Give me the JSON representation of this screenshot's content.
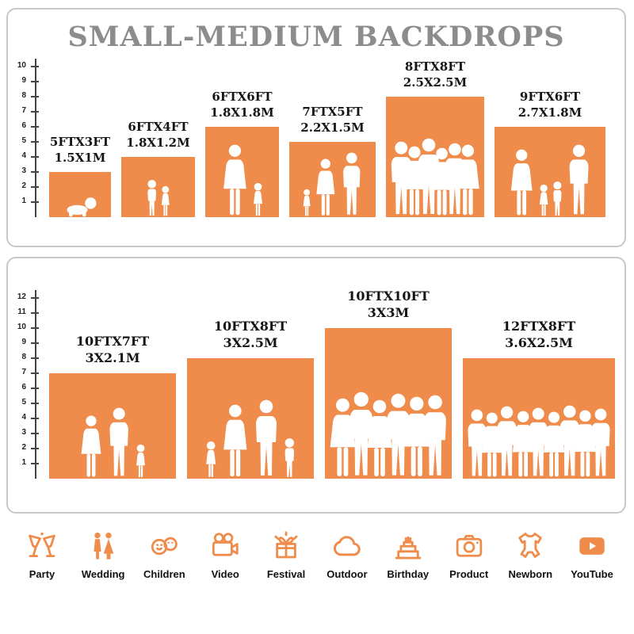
{
  "title": "SMALL-MEDIUM BACKDROPS",
  "colors": {
    "accent": "#EF8C4B",
    "title_text": "#8C8C8C",
    "label_text": "#151515",
    "panel_border": "#C8C8C8"
  },
  "top_panel": {
    "ruler": [
      1,
      2,
      3,
      4,
      5,
      6,
      7,
      8,
      9,
      10
    ],
    "bars": [
      {
        "ft": "5FTX3FT",
        "m": "1.5X1M",
        "w": 5,
        "h": 3,
        "people": [
          [
            "baby",
            26
          ]
        ]
      },
      {
        "ft": "6FTX4FT",
        "m": "1.8X1.2M",
        "w": 6,
        "h": 4,
        "people": [
          [
            "child",
            48
          ],
          [
            "girl",
            40
          ]
        ]
      },
      {
        "ft": "6FTX6FT",
        "m": "1.8X1.8M",
        "w": 6,
        "h": 6,
        "people": [
          [
            "woman",
            92
          ],
          [
            "girl",
            44
          ]
        ]
      },
      {
        "ft": "7FTX5FT",
        "m": "2.2X1.5M",
        "w": 7,
        "h": 5,
        "people": [
          [
            "girl",
            36
          ],
          [
            "woman",
            74
          ],
          [
            "man",
            82
          ]
        ]
      },
      {
        "ft": "8FTX8FT",
        "m": "2.5X2.5M",
        "w": 8,
        "h": 8,
        "people": [
          [
            "man",
            96
          ],
          [
            "woman",
            90
          ],
          [
            "man",
            100
          ],
          [
            "woman",
            88
          ],
          [
            "man",
            94
          ],
          [
            "woman",
            92
          ]
        ]
      },
      {
        "ft": "9FTX6FT",
        "m": "2.7X1.8M",
        "w": 9,
        "h": 6,
        "people": [
          [
            "woman",
            86
          ],
          [
            "girl",
            42
          ],
          [
            "child",
            46
          ],
          [
            "man",
            92
          ]
        ]
      }
    ]
  },
  "bottom_panel": {
    "ruler": [
      1,
      2,
      3,
      4,
      5,
      6,
      7,
      8,
      9,
      10,
      11,
      12
    ],
    "bars": [
      {
        "ft": "10FTX7FT",
        "m": "3X2.1M",
        "w": 10,
        "h": 7,
        "people": [
          [
            "woman",
            80
          ],
          [
            "man",
            90
          ],
          [
            "girl",
            44
          ]
        ]
      },
      {
        "ft": "10FTX8FT",
        "m": "3X2.5M",
        "w": 10,
        "h": 8,
        "people": [
          [
            "girl",
            48
          ],
          [
            "woman",
            94
          ],
          [
            "man",
            100
          ],
          [
            "child",
            52
          ]
        ]
      },
      {
        "ft": "10FTX10FT",
        "m": "3X3M",
        "w": 10,
        "h": 10,
        "people": [
          [
            "woman",
            102
          ],
          [
            "man",
            110
          ],
          [
            "woman",
            100
          ],
          [
            "man",
            108
          ],
          [
            "woman",
            104
          ],
          [
            "man",
            106
          ]
        ]
      },
      {
        "ft": "12FTX8FT",
        "m": "3.6X2.5M",
        "w": 12,
        "h": 8,
        "people": [
          [
            "man",
            88
          ],
          [
            "woman",
            84
          ],
          [
            "man",
            92
          ],
          [
            "woman",
            86
          ],
          [
            "man",
            90
          ],
          [
            "woman",
            85
          ],
          [
            "man",
            93
          ],
          [
            "woman",
            87
          ],
          [
            "man",
            89
          ]
        ]
      }
    ]
  },
  "categories": [
    {
      "label": "Party",
      "icon": "party-icon"
    },
    {
      "label": "Wedding",
      "icon": "wedding-icon"
    },
    {
      "label": "Children",
      "icon": "children-icon"
    },
    {
      "label": "Video",
      "icon": "video-icon"
    },
    {
      "label": "Festival",
      "icon": "festival-icon"
    },
    {
      "label": "Outdoor",
      "icon": "outdoor-icon"
    },
    {
      "label": "Birthday",
      "icon": "birthday-icon"
    },
    {
      "label": "Product",
      "icon": "product-icon"
    },
    {
      "label": "Newborn",
      "icon": "newborn-icon"
    },
    {
      "label": "YouTube",
      "icon": "youtube-icon"
    }
  ]
}
